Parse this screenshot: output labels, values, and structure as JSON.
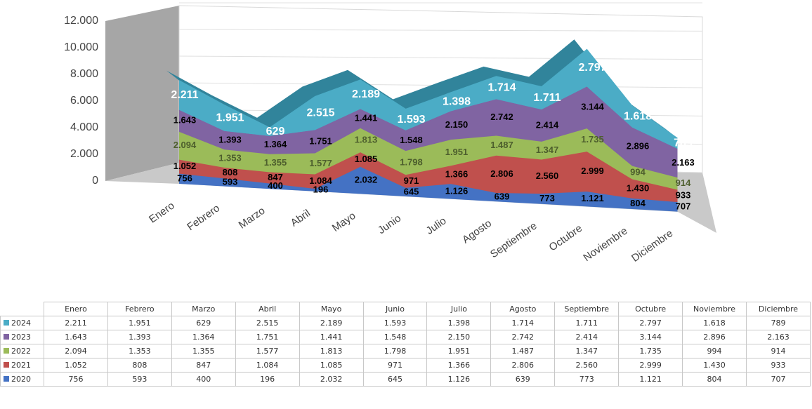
{
  "chart_data": {
    "type": "area3d_stacked",
    "categories": [
      "Enero",
      "Febrero",
      "Marzo",
      "Abril",
      "Mayo",
      "Junio",
      "Julio",
      "Agosto",
      "Septiembre",
      "Octubre",
      "Noviembre",
      "Diciembre"
    ],
    "series": [
      {
        "name": "2020",
        "color": "#4472c4",
        "values": [
          756,
          593,
          400,
          196,
          2032,
          645,
          1126,
          639,
          773,
          1121,
          804,
          707
        ],
        "value_labels": [
          "756",
          "593",
          "400",
          "196",
          "2.032",
          "645",
          "1.126",
          "639",
          "773",
          "1.121",
          "804",
          "707"
        ]
      },
      {
        "name": "2021",
        "color": "#c0504d",
        "values": [
          1052,
          808,
          847,
          1084,
          1085,
          971,
          1366,
          2806,
          2560,
          2999,
          1430,
          933
        ],
        "value_labels": [
          "1.052",
          "808",
          "847",
          "1.084",
          "1.085",
          "971",
          "1.366",
          "2.806",
          "2.560",
          "2.999",
          "1.430",
          "933"
        ]
      },
      {
        "name": "2022",
        "color": "#9bbb59",
        "values": [
          2094,
          1353,
          1355,
          1577,
          1813,
          1798,
          1951,
          1487,
          1347,
          1735,
          994,
          914
        ],
        "value_labels": [
          "2.094",
          "1.353",
          "1.355",
          "1.577",
          "1.813",
          "1.798",
          "1.951",
          "1.487",
          "1.347",
          "1.735",
          "994",
          "914"
        ]
      },
      {
        "name": "2023",
        "color": "#8064a2",
        "values": [
          1643,
          1393,
          1364,
          1751,
          1441,
          1548,
          2150,
          2742,
          2414,
          3144,
          2896,
          2163
        ],
        "value_labels": [
          "1.643",
          "1.393",
          "1.364",
          "1.751",
          "1.441",
          "1.548",
          "2.150",
          "2.742",
          "2.414",
          "3.144",
          "2.896",
          "2.163"
        ]
      },
      {
        "name": "2024",
        "color": "#4bacc6",
        "values": [
          2211,
          1951,
          629,
          2515,
          2189,
          1593,
          1398,
          1714,
          1711,
          2797,
          1618,
          789
        ],
        "value_labels": [
          "2.211",
          "1.951",
          "629",
          "2.515",
          "2.189",
          "1.593",
          "1.398",
          "1.714",
          "1.711",
          "2.797",
          "1.618",
          "789"
        ]
      }
    ],
    "ylim": [
      0,
      12000
    ],
    "yticks": [
      0,
      {
        "value": 2000,
        "label": "2.000"
      },
      {
        "value": 4000,
        "label": "4.000"
      },
      {
        "value": 6000,
        "label": "6.000"
      },
      {
        "value": 8000,
        "label": "8.000"
      },
      {
        "value": 10000,
        "label": "10.000"
      },
      {
        "value": 12000,
        "label": "12.000"
      }
    ],
    "grid": true
  }
}
